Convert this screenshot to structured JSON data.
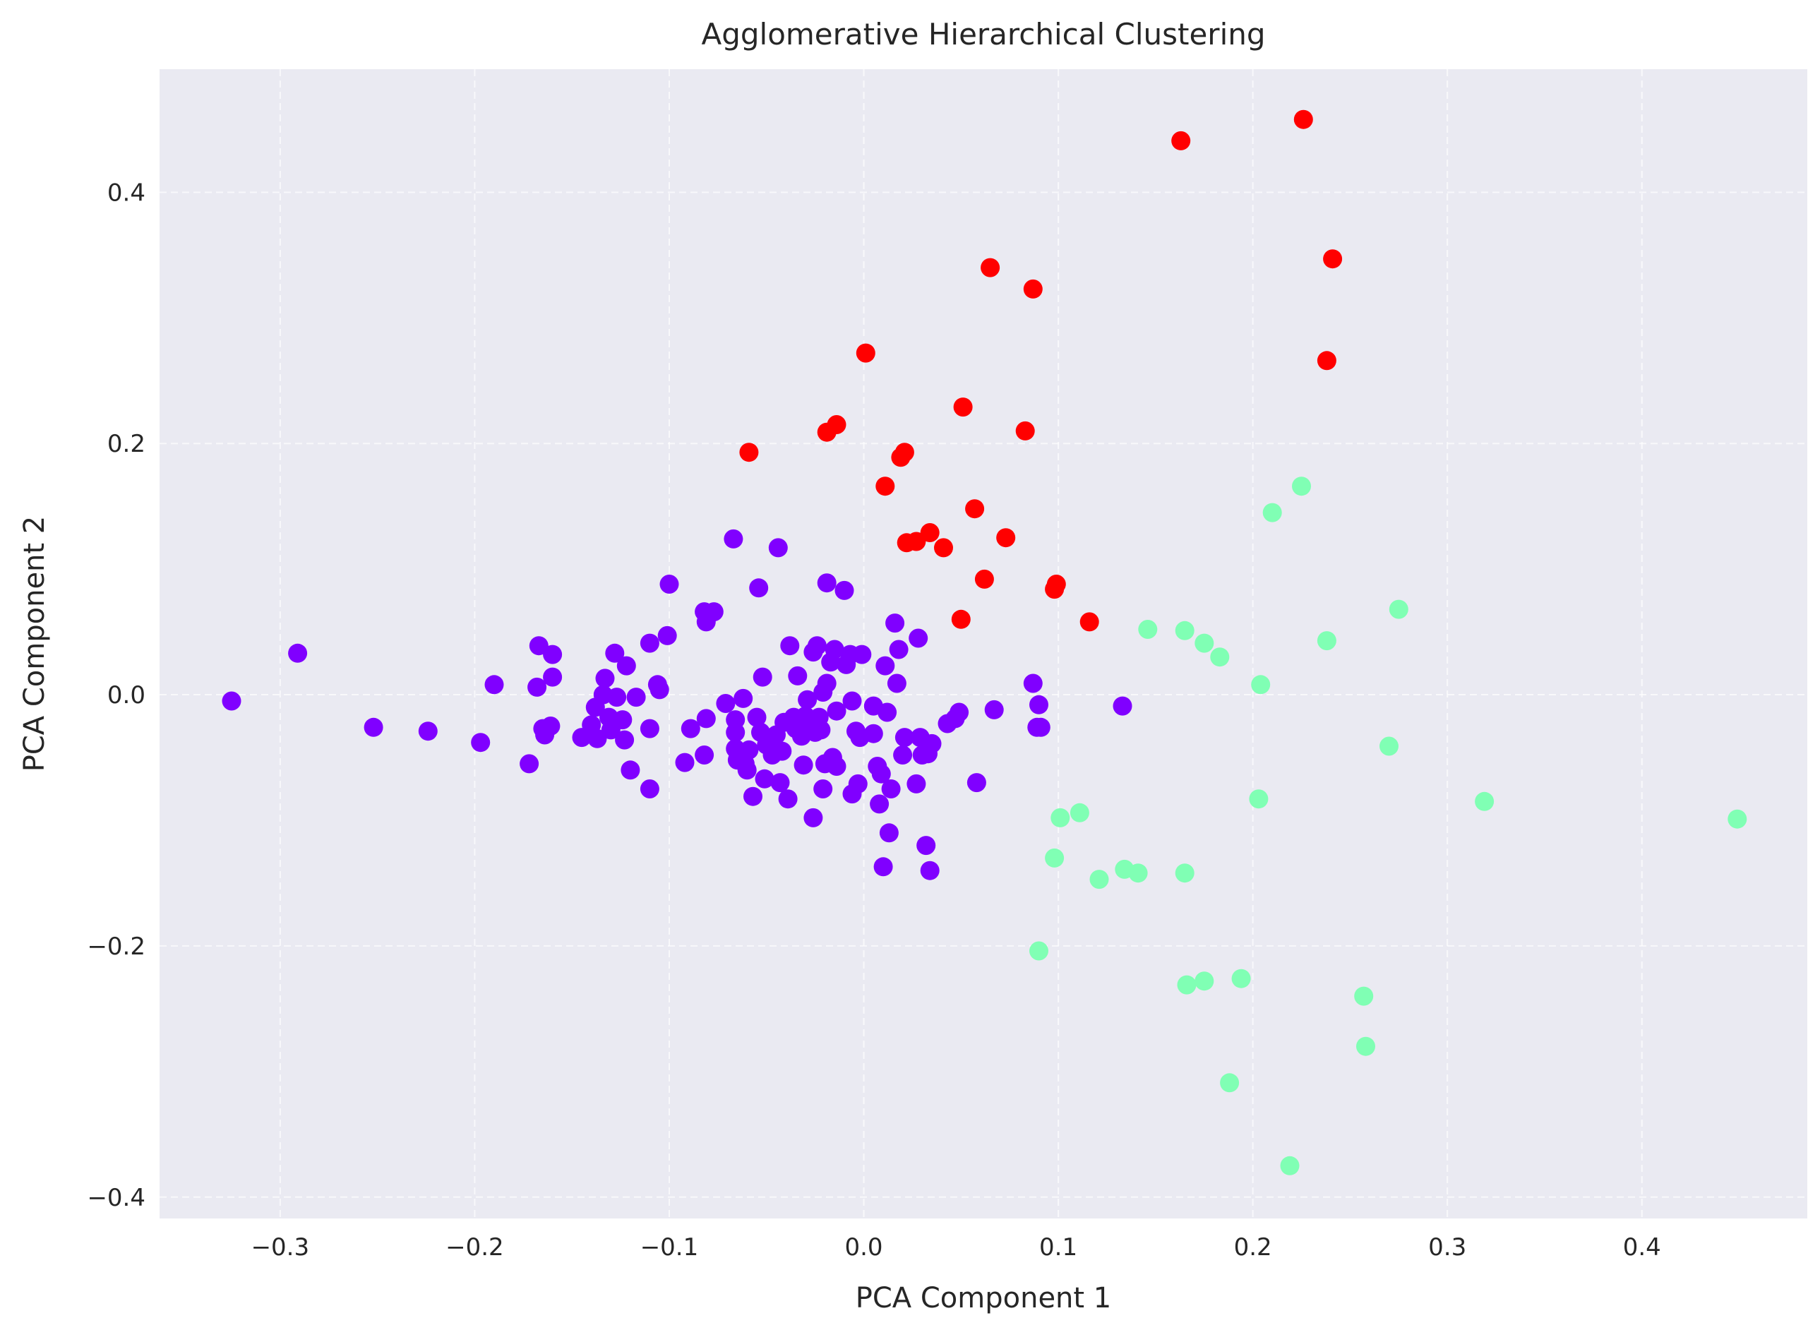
{
  "chart_data": {
    "type": "scatter",
    "title": "Agglomerative Hierarchical Clustering",
    "xlabel": "PCA Component 1",
    "ylabel": "PCA Component 2",
    "xlim": [
      -0.362,
      0.485
    ],
    "ylim": [
      -0.417,
      0.498
    ],
    "xticks": [
      -0.3,
      -0.2,
      -0.1,
      0.0,
      0.1,
      0.2,
      0.3,
      0.4
    ],
    "xtick_labels": [
      "−0.3",
      "−0.2",
      "−0.1",
      "0.0",
      "0.1",
      "0.2",
      "0.3",
      "0.4"
    ],
    "yticks": [
      -0.4,
      -0.2,
      0.0,
      0.2,
      0.4
    ],
    "ytick_labels": [
      "−0.4",
      "−0.2",
      "0.0",
      "0.2",
      "0.4"
    ],
    "grid": true,
    "background_color": "#eaeaf2",
    "series": [
      {
        "color": "#8000ff",
        "points": [
          [
            -0.325,
            -0.005
          ],
          [
            -0.291,
            0.033
          ],
          [
            -0.252,
            -0.026
          ],
          [
            -0.224,
            -0.029
          ],
          [
            -0.197,
            -0.038
          ],
          [
            -0.19,
            0.008
          ],
          [
            -0.172,
            -0.055
          ],
          [
            -0.168,
            0.006
          ],
          [
            -0.167,
            0.039
          ],
          [
            -0.165,
            -0.027
          ],
          [
            -0.164,
            -0.032
          ],
          [
            -0.161,
            -0.025
          ],
          [
            -0.16,
            0.032
          ],
          [
            -0.16,
            0.014
          ],
          [
            -0.145,
            -0.034
          ],
          [
            -0.14,
            -0.024
          ],
          [
            -0.138,
            -0.01
          ],
          [
            -0.137,
            -0.035
          ],
          [
            -0.134,
            0.0
          ],
          [
            -0.133,
            0.013
          ],
          [
            -0.131,
            -0.018
          ],
          [
            -0.13,
            -0.028
          ],
          [
            -0.128,
            0.033
          ],
          [
            -0.127,
            -0.002
          ],
          [
            -0.124,
            -0.02
          ],
          [
            -0.123,
            -0.036
          ],
          [
            -0.122,
            0.023
          ],
          [
            -0.12,
            -0.06
          ],
          [
            -0.117,
            -0.002
          ],
          [
            -0.11,
            0.041
          ],
          [
            -0.11,
            -0.027
          ],
          [
            -0.11,
            -0.075
          ],
          [
            -0.106,
            0.008
          ],
          [
            -0.105,
            0.004
          ],
          [
            -0.101,
            0.047
          ],
          [
            -0.1,
            0.088
          ],
          [
            -0.092,
            -0.054
          ],
          [
            -0.089,
            -0.027
          ],
          [
            -0.082,
            -0.048
          ],
          [
            -0.082,
            0.066
          ],
          [
            -0.081,
            0.058
          ],
          [
            -0.081,
            -0.019
          ],
          [
            -0.077,
            0.066
          ],
          [
            -0.071,
            -0.007
          ],
          [
            -0.067,
            0.124
          ],
          [
            -0.066,
            -0.02
          ],
          [
            -0.066,
            -0.03
          ],
          [
            -0.066,
            -0.043
          ],
          [
            -0.065,
            -0.052
          ],
          [
            -0.062,
            -0.003
          ],
          [
            -0.061,
            -0.055
          ],
          [
            -0.06,
            -0.06
          ],
          [
            -0.059,
            -0.044
          ],
          [
            -0.057,
            -0.081
          ],
          [
            -0.055,
            -0.018
          ],
          [
            -0.054,
            0.085
          ],
          [
            -0.053,
            -0.03
          ],
          [
            -0.052,
            0.014
          ],
          [
            -0.051,
            -0.067
          ],
          [
            -0.05,
            -0.04
          ],
          [
            -0.047,
            -0.048
          ],
          [
            -0.045,
            -0.032
          ],
          [
            -0.044,
            0.117
          ],
          [
            -0.043,
            -0.07
          ],
          [
            -0.042,
            -0.045
          ],
          [
            -0.041,
            -0.022
          ],
          [
            -0.039,
            -0.083
          ],
          [
            -0.038,
            0.039
          ],
          [
            -0.036,
            -0.018
          ],
          [
            -0.035,
            -0.027
          ],
          [
            -0.034,
            0.015
          ],
          [
            -0.032,
            -0.033
          ],
          [
            -0.031,
            -0.056
          ],
          [
            -0.03,
            -0.017
          ],
          [
            -0.029,
            -0.004
          ],
          [
            -0.028,
            -0.025
          ],
          [
            -0.026,
            0.034
          ],
          [
            -0.026,
            -0.098
          ],
          [
            -0.025,
            -0.03
          ],
          [
            -0.024,
            0.039
          ],
          [
            -0.023,
            -0.018
          ],
          [
            -0.022,
            -0.028
          ],
          [
            -0.021,
            -0.075
          ],
          [
            -0.021,
            0.002
          ],
          [
            -0.02,
            -0.055
          ],
          [
            -0.019,
            0.009
          ],
          [
            -0.019,
            0.089
          ],
          [
            -0.017,
            0.026
          ],
          [
            -0.016,
            -0.05
          ],
          [
            -0.015,
            0.036
          ],
          [
            -0.014,
            -0.057
          ],
          [
            -0.014,
            -0.013
          ],
          [
            -0.01,
            0.083
          ],
          [
            -0.009,
            0.024
          ],
          [
            -0.007,
            0.032
          ],
          [
            -0.006,
            -0.005
          ],
          [
            -0.006,
            -0.079
          ],
          [
            -0.004,
            -0.029
          ],
          [
            -0.003,
            -0.071
          ],
          [
            -0.002,
            -0.034
          ],
          [
            -0.001,
            0.032
          ],
          [
            0.005,
            -0.009
          ],
          [
            0.005,
            -0.031
          ],
          [
            0.007,
            -0.057
          ],
          [
            0.008,
            -0.087
          ],
          [
            0.009,
            -0.063
          ],
          [
            0.01,
            -0.137
          ],
          [
            0.011,
            0.023
          ],
          [
            0.012,
            -0.014
          ],
          [
            0.013,
            -0.11
          ],
          [
            0.014,
            -0.075
          ],
          [
            0.016,
            0.057
          ],
          [
            0.017,
            0.009
          ],
          [
            0.018,
            0.036
          ],
          [
            0.02,
            -0.048
          ],
          [
            0.021,
            -0.034
          ],
          [
            0.027,
            -0.071
          ],
          [
            0.028,
            0.045
          ],
          [
            0.029,
            -0.034
          ],
          [
            0.03,
            -0.048
          ],
          [
            0.032,
            -0.12
          ],
          [
            0.033,
            -0.047
          ],
          [
            0.034,
            -0.14
          ],
          [
            0.035,
            -0.039
          ],
          [
            0.043,
            -0.023
          ],
          [
            0.047,
            -0.019
          ],
          [
            0.049,
            -0.014
          ],
          [
            0.058,
            -0.07
          ],
          [
            0.067,
            -0.012
          ],
          [
            0.087,
            0.009
          ],
          [
            0.089,
            -0.026
          ],
          [
            0.09,
            -0.008
          ],
          [
            0.091,
            -0.026
          ],
          [
            0.133,
            -0.009
          ]
        ]
      },
      {
        "color": "#80ffb4",
        "points": [
          [
            0.09,
            -0.204
          ],
          [
            0.098,
            -0.13
          ],
          [
            0.101,
            -0.098
          ],
          [
            0.111,
            -0.094
          ],
          [
            0.121,
            -0.147
          ],
          [
            0.134,
            -0.139
          ],
          [
            0.141,
            -0.142
          ],
          [
            0.146,
            0.052
          ],
          [
            0.165,
            0.051
          ],
          [
            0.165,
            -0.142
          ],
          [
            0.166,
            -0.231
          ],
          [
            0.175,
            0.041
          ],
          [
            0.175,
            -0.228
          ],
          [
            0.183,
            0.03
          ],
          [
            0.188,
            -0.309
          ],
          [
            0.194,
            -0.226
          ],
          [
            0.203,
            -0.083
          ],
          [
            0.204,
            0.008
          ],
          [
            0.21,
            0.145
          ],
          [
            0.219,
            -0.375
          ],
          [
            0.225,
            0.166
          ],
          [
            0.238,
            0.043
          ],
          [
            0.257,
            -0.24
          ],
          [
            0.258,
            -0.28
          ],
          [
            0.27,
            -0.041
          ],
          [
            0.275,
            0.068
          ],
          [
            0.319,
            -0.085
          ],
          [
            0.449,
            -0.099
          ]
        ]
      },
      {
        "color": "#ff0000",
        "points": [
          [
            -0.059,
            0.193
          ],
          [
            -0.019,
            0.209
          ],
          [
            -0.014,
            0.215
          ],
          [
            0.001,
            0.272
          ],
          [
            0.011,
            0.166
          ],
          [
            0.019,
            0.189
          ],
          [
            0.021,
            0.193
          ],
          [
            0.022,
            0.121
          ],
          [
            0.027,
            0.122
          ],
          [
            0.034,
            0.129
          ],
          [
            0.041,
            0.117
          ],
          [
            0.05,
            0.06
          ],
          [
            0.051,
            0.229
          ],
          [
            0.057,
            0.148
          ],
          [
            0.062,
            0.092
          ],
          [
            0.065,
            0.34
          ],
          [
            0.073,
            0.125
          ],
          [
            0.083,
            0.21
          ],
          [
            0.087,
            0.323
          ],
          [
            0.098,
            0.084
          ],
          [
            0.099,
            0.088
          ],
          [
            0.116,
            0.058
          ],
          [
            0.163,
            0.441
          ],
          [
            0.226,
            0.458
          ],
          [
            0.238,
            0.266
          ],
          [
            0.241,
            0.347
          ]
        ]
      }
    ]
  }
}
